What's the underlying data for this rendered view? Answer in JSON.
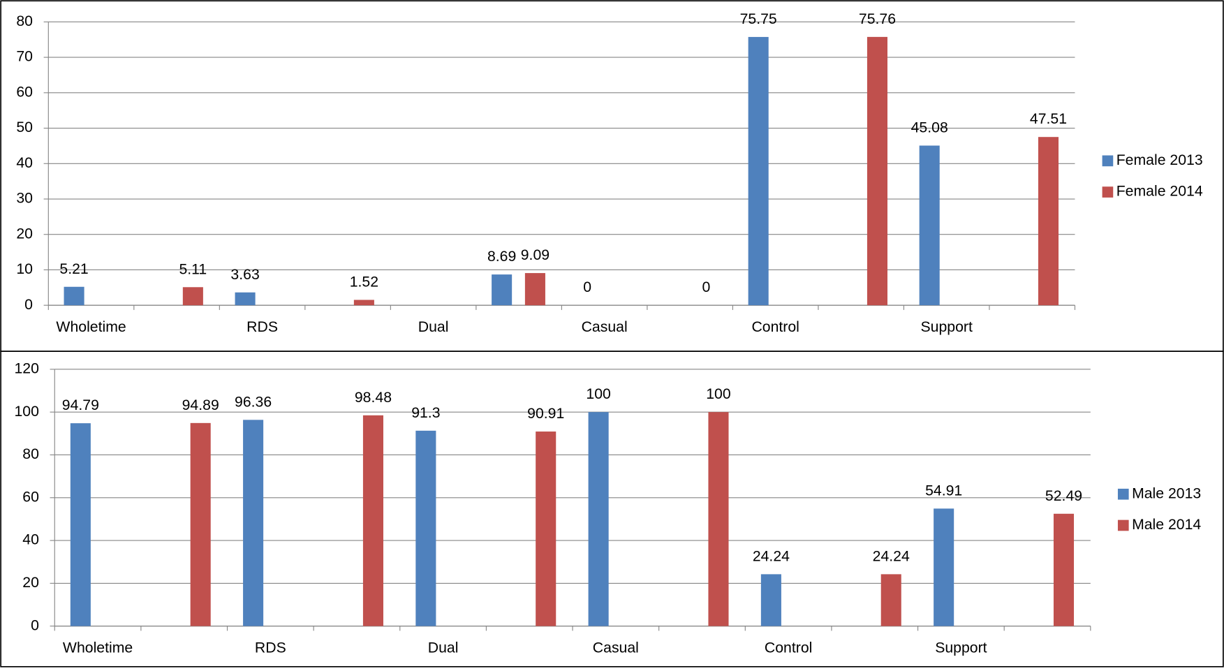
{
  "chart_data": [
    {
      "type": "bar",
      "categories": [
        "Wholetime",
        null,
        "RDS",
        null,
        "Dual",
        null,
        "Casual",
        null,
        "Control",
        null,
        "Support",
        null
      ],
      "series": [
        {
          "name": "Female 2013",
          "color": "#4f81bd",
          "values": [
            5.21,
            null,
            3.63,
            null,
            null,
            8.69,
            0,
            null,
            75.75,
            null,
            45.08,
            null
          ]
        },
        {
          "name": "Female 2014",
          "color": "#c0504d",
          "values": [
            null,
            5.11,
            null,
            1.52,
            null,
            9.09,
            null,
            0,
            null,
            75.76,
            null,
            47.51
          ]
        }
      ],
      "ylim": [
        0,
        80
      ],
      "yticks": [
        0,
        10,
        20,
        30,
        40,
        50,
        60,
        70,
        80
      ],
      "grid": true,
      "legend": "right"
    },
    {
      "type": "bar",
      "categories": [
        "Wholetime",
        null,
        "RDS",
        null,
        "Dual",
        null,
        "Casual",
        null,
        "Control",
        null,
        "Support",
        null
      ],
      "series": [
        {
          "name": "Male 2013",
          "color": "#4f81bd",
          "values": [
            94.79,
            null,
            96.36,
            null,
            91.3,
            null,
            100,
            null,
            24.24,
            null,
            54.91,
            null
          ]
        },
        {
          "name": "Male 2014",
          "color": "#c0504d",
          "values": [
            null,
            94.89,
            null,
            98.48,
            null,
            90.91,
            null,
            100,
            null,
            24.24,
            null,
            52.49
          ]
        }
      ],
      "ylim": [
        0,
        120
      ],
      "yticks": [
        0,
        20,
        40,
        60,
        80,
        100,
        120
      ],
      "grid": true,
      "legend": "right"
    }
  ]
}
